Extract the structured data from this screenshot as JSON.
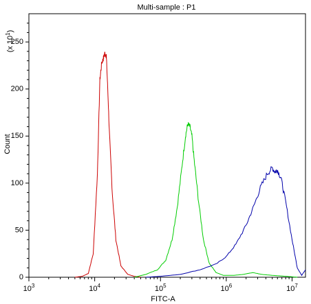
{
  "chart_data": {
    "type": "line",
    "title": "Multi-sample : P1",
    "xlabel": "FITC-A",
    "ylabel": "Count",
    "y_multiplier_label": "(x 10",
    "y_multiplier_exp": "1",
    "y_multiplier_close": ")",
    "x_scale": "log",
    "xlim": [
      1000,
      16000000
    ],
    "ylim": [
      0,
      280
    ],
    "x_ticks": [
      {
        "value": 1000,
        "base": "10",
        "exp": "3"
      },
      {
        "value": 10000,
        "base": "10",
        "exp": "4"
      },
      {
        "value": 100000,
        "base": "10",
        "exp": "5"
      },
      {
        "value": 1000000,
        "base": "10",
        "exp": "6"
      },
      {
        "value": 10000000,
        "base": "10",
        "exp": "7"
      }
    ],
    "y_ticks": [
      0,
      50,
      100,
      150,
      200,
      250
    ],
    "grid": false,
    "legend": "none",
    "series": [
      {
        "color": "#cc0000",
        "x": [
          5000,
          6500,
          8000,
          9500,
          11000,
          12000,
          12800,
          13500,
          14200,
          15000,
          15800,
          16800,
          18500,
          21000,
          25000,
          32000,
          40000,
          50000
        ],
        "y": [
          0,
          1,
          4,
          25,
          110,
          210,
          228,
          232,
          238,
          236,
          200,
          150,
          90,
          40,
          12,
          3,
          1,
          0
        ]
      },
      {
        "color": "#00cc00",
        "x": [
          40000,
          60000,
          90000,
          120000,
          150000,
          180000,
          210000,
          240000,
          260000,
          280000,
          300000,
          330000,
          380000,
          450000,
          550000,
          700000,
          900000,
          1300000,
          1800000,
          2500000,
          3500000,
          5000000,
          8000000,
          12000000
        ],
        "y": [
          0,
          3,
          8,
          18,
          40,
          75,
          115,
          150,
          163,
          160,
          150,
          120,
          80,
          40,
          15,
          5,
          2,
          2,
          3,
          5,
          3,
          2,
          1,
          0
        ]
      },
      {
        "color": "#0000aa",
        "x": [
          60000,
          100000,
          200000,
          400000,
          700000,
          1000000,
          1400000,
          2000000,
          2600000,
          3300000,
          4200000,
          5000000,
          5500000,
          6000000,
          6800000,
          8000000,
          10000000,
          12000000,
          14000000,
          16000000
        ],
        "y": [
          0,
          1,
          3,
          8,
          14,
          22,
          35,
          55,
          75,
          95,
          110,
          116,
          112,
          114,
          105,
          80,
          40,
          10,
          2,
          8
        ]
      }
    ]
  }
}
